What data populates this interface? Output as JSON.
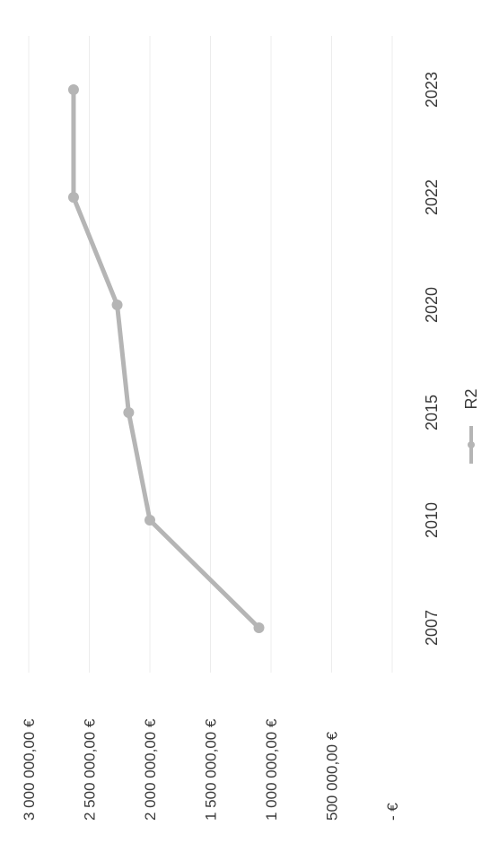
{
  "chart_data": {
    "type": "line",
    "orientation": "rotated-90-clockwise",
    "categories": [
      "2007",
      "2010",
      "2015",
      "2020",
      "2022",
      "2023"
    ],
    "series": [
      {
        "name": "R2",
        "values": [
          1100000,
          2000000,
          2175000,
          2270000,
          2630000,
          2630000
        ]
      }
    ],
    "y_tick_labels": [
      "- €",
      "500 000,00 €",
      "1 000 000,00 €",
      "1 500 000,00 €",
      "2 000 000,00 €",
      "2 500 000,00 €",
      "3 000 000,00 €"
    ],
    "ylim": [
      0,
      3000000
    ],
    "grid": true,
    "legend_position": "bottom",
    "colors": {
      "series": "#b5b5b5",
      "grid": "#ececec",
      "text": "#3a3a3a"
    }
  }
}
